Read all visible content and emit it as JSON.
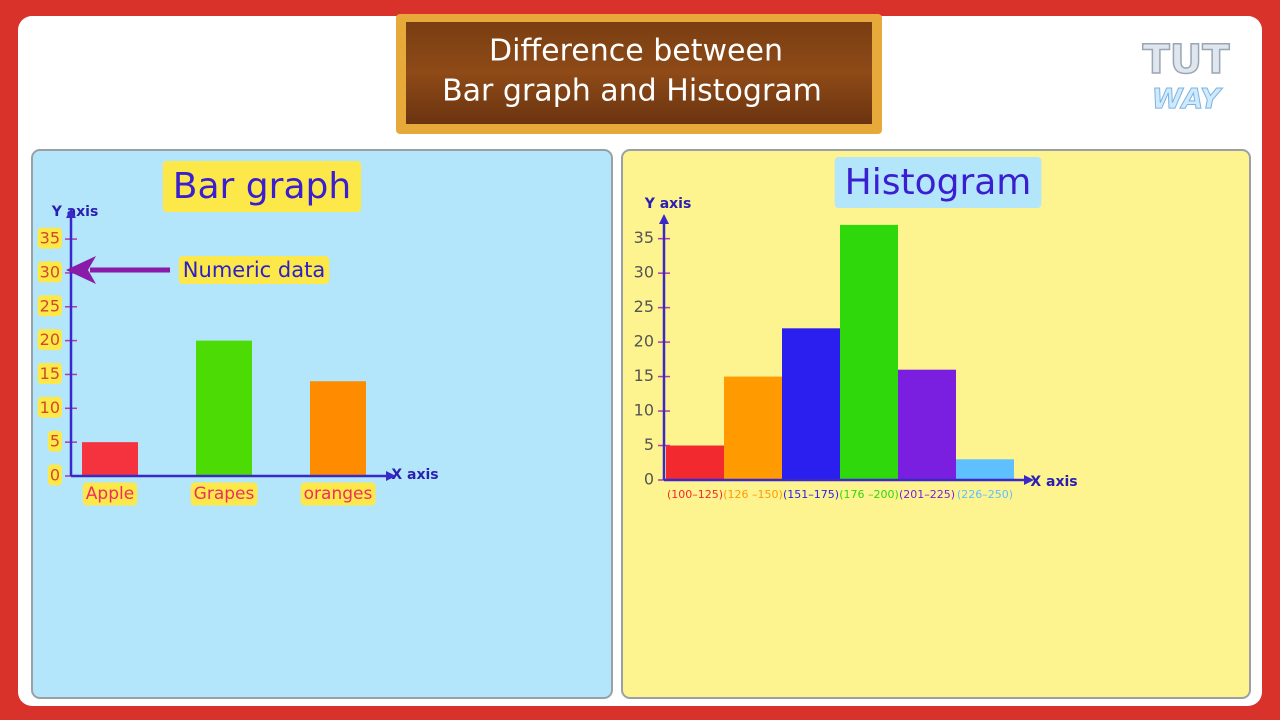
{
  "header": {
    "title_lines": [
      "Difference between",
      "Bar graph and Histogram"
    ]
  },
  "logo": {
    "lines": [
      "TUT",
      "WAY"
    ]
  },
  "chart_data": [
    {
      "type": "bar",
      "title": "Bar graph",
      "y_label": "Y axis",
      "x_label": "X axis",
      "annotation": "Numeric data",
      "categories": [
        "Apple",
        "Grapes",
        "oranges"
      ],
      "values": [
        5,
        20,
        14
      ],
      "colors": [
        "#f5333f",
        "#4ddb06",
        "#ff8c00"
      ],
      "ylim": [
        0,
        39
      ],
      "yticks": [
        0,
        5,
        10,
        15,
        20,
        25,
        30,
        35
      ]
    },
    {
      "type": "histogram",
      "title": "Histogram",
      "y_label": "Y axis",
      "x_label": "X axis",
      "categories": [
        "(100–125)",
        "(126 –150)",
        "(151–175)",
        "(176 –200)",
        "(201–225)",
        "(226–250)"
      ],
      "values": [
        5,
        15,
        22,
        37,
        16,
        3
      ],
      "colors": [
        "#f2292e",
        "#ff9a00",
        "#2b1ff0",
        "#2fd80a",
        "#7a1fe0",
        "#5ec0ff"
      ],
      "ylim": [
        0,
        38
      ],
      "yticks": [
        0,
        5,
        10,
        15,
        20,
        25,
        30,
        35
      ]
    }
  ]
}
